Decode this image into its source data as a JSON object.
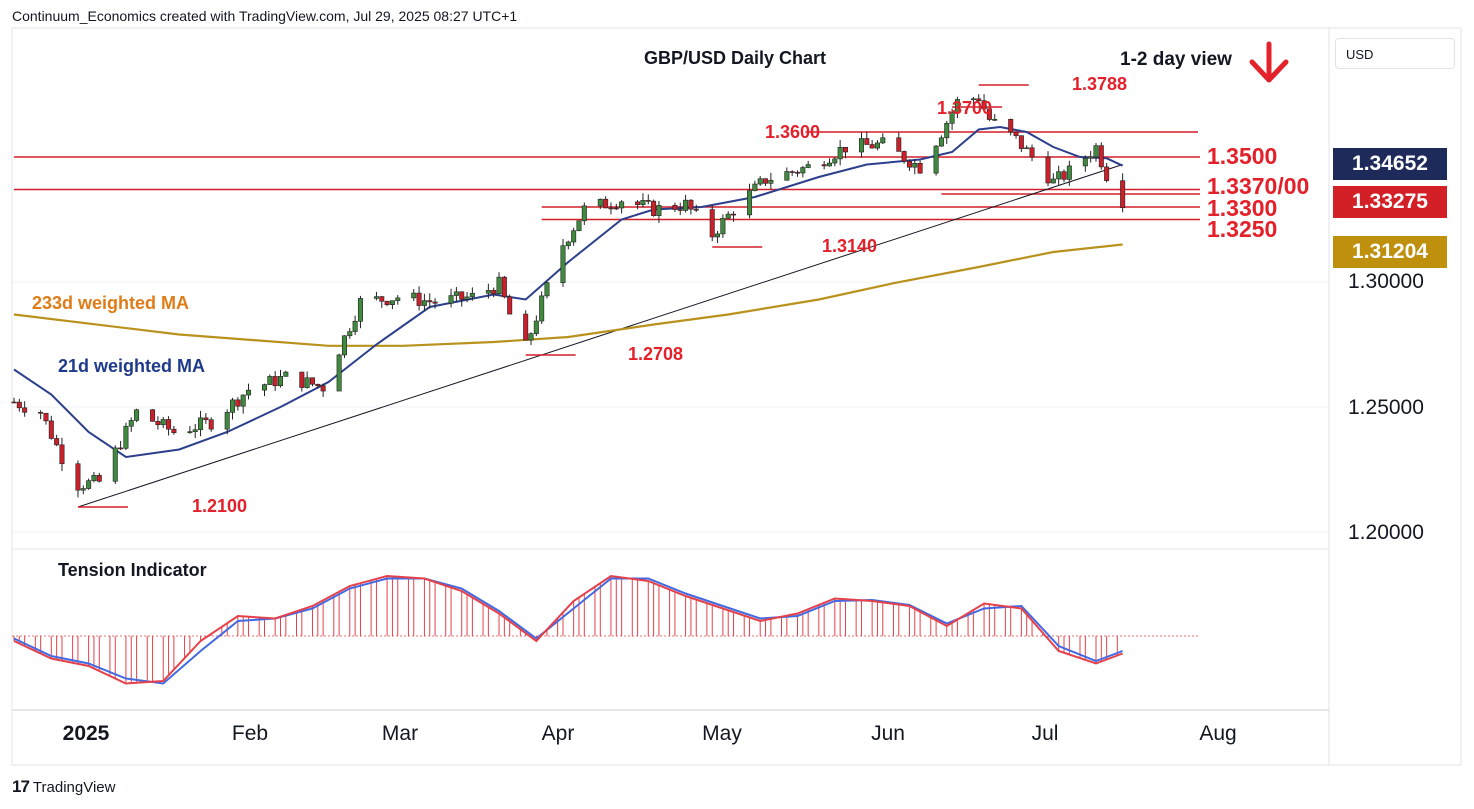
{
  "header": {
    "text": "Continuum_Economics created with TradingView.com, Jul 29, 2025 08:27 UTC+1"
  },
  "footer": {
    "brand": "TradingView"
  },
  "currency_button": "USD",
  "price_tags": [
    {
      "text": "1.34652",
      "color": "#1e2a5a"
    },
    {
      "text": "1.33275",
      "color": "#d32027"
    },
    {
      "text": "1.31204",
      "color": "#bf8f0e"
    }
  ],
  "y_ticks": [
    "1.30000",
    "1.25000",
    "1.20000"
  ],
  "x_ticks": [
    "2025",
    "Feb",
    "Mar",
    "Apr",
    "May",
    "Jun",
    "Jul",
    "Aug"
  ],
  "annotations": {
    "title": "GBP/USD Daily Chart",
    "view": "1-2 day view",
    "ma233": "233d weighted MA",
    "ma21": "21d weighted MA",
    "tension": "Tension Indicator",
    "levels": [
      "1.3500",
      "1.3370/00",
      "1.3300",
      "1.3250"
    ],
    "marks": [
      "1.3788",
      "1.3700",
      "1.3600",
      "1.3140",
      "1.2708",
      "1.2100"
    ]
  },
  "colors": {
    "up_candle": "#3f8a3f",
    "down_candle": "#c9202a",
    "level_line": "#d31f28",
    "ma21": "#2b3f8c",
    "ma233": "#b8921d",
    "arrow": "#e3232b",
    "tension_red": "#e4414a",
    "tension_blue": "#4169e1"
  },
  "chart_data": [
    {
      "type": "line",
      "title": "GBP/USD Daily Chart",
      "subtitle": "1-2 day view",
      "ylim": [
        1.1925,
        1.3975
      ],
      "y_ticks": [
        1.2,
        1.25,
        1.3
      ],
      "x_ticks": [
        "2025",
        "Feb",
        "Mar",
        "Apr",
        "May",
        "Jun",
        "Jul",
        "Aug"
      ],
      "x_range": [
        "2025-01-01",
        "2025-08-13"
      ],
      "horizontal_levels": [
        1.35,
        1.337,
        1.33,
        1.325
      ],
      "marked_levels": [
        {
          "label": "1.3788",
          "date": "2025-07-01",
          "value": 1.3788
        },
        {
          "label": "1.3700",
          "date": "2025-06-26",
          "value": 1.37
        },
        {
          "label": "1.3600",
          "date": "2025-06-06",
          "value": 1.36
        },
        {
          "label": "1.3140",
          "date": "2025-05-12",
          "value": 1.314
        },
        {
          "label": "1.2708",
          "date": "2025-04-07",
          "value": 1.2708
        },
        {
          "label": "1.2100",
          "date": "2025-01-13",
          "value": 1.21
        }
      ],
      "trendline": [
        {
          "date": "2025-01-13",
          "value": 1.21
        },
        {
          "date": "2025-07-28",
          "value": 1.347
        }
      ],
      "series": [
        {
          "name": "233d weighted MA",
          "dates": [
            "2025-01-01",
            "2025-02-01",
            "2025-03-01",
            "2025-03-15",
            "2025-04-01",
            "2025-04-15",
            "2025-05-01",
            "2025-05-15",
            "2025-06-01",
            "2025-06-15",
            "2025-07-01",
            "2025-07-15",
            "2025-07-28"
          ],
          "values": [
            1.287,
            1.279,
            1.2745,
            1.2745,
            1.276,
            1.278,
            1.283,
            1.287,
            1.293,
            1.2995,
            1.306,
            1.312,
            1.315
          ]
        },
        {
          "name": "21d weighted MA",
          "dates": [
            "2025-01-01",
            "2025-01-08",
            "2025-01-15",
            "2025-01-22",
            "2025-02-01",
            "2025-02-10",
            "2025-02-20",
            "2025-03-01",
            "2025-03-10",
            "2025-03-20",
            "2025-04-01",
            "2025-04-07",
            "2025-04-15",
            "2025-04-25",
            "2025-05-01",
            "2025-05-10",
            "2025-05-20",
            "2025-06-01",
            "2025-06-10",
            "2025-06-20",
            "2025-06-26",
            "2025-07-01",
            "2025-07-05",
            "2025-07-10",
            "2025-07-15",
            "2025-07-20",
            "2025-07-25",
            "2025-07-28"
          ],
          "values": [
            1.265,
            1.255,
            1.24,
            1.23,
            1.233,
            1.24,
            1.25,
            1.26,
            1.275,
            1.29,
            1.295,
            1.293,
            1.308,
            1.325,
            1.329,
            1.33,
            1.334,
            1.342,
            1.347,
            1.349,
            1.352,
            1.361,
            1.362,
            1.36,
            1.354,
            1.35,
            1.3495,
            1.3465
          ]
        },
        {
          "name": "GBP/USD close",
          "dates": [
            "2025-01-01",
            "2025-01-06",
            "2025-01-10",
            "2025-01-13",
            "2025-01-17",
            "2025-01-24",
            "2025-01-31",
            "2025-02-07",
            "2025-02-14",
            "2025-02-21",
            "2025-02-28",
            "2025-03-03",
            "2025-03-07",
            "2025-03-14",
            "2025-03-21",
            "2025-03-28",
            "2025-04-02",
            "2025-04-04",
            "2025-04-07",
            "2025-04-10",
            "2025-04-14",
            "2025-04-18",
            "2025-04-25",
            "2025-05-01",
            "2025-05-07",
            "2025-05-12",
            "2025-05-16",
            "2025-05-22",
            "2025-05-30",
            "2025-06-06",
            "2025-06-13",
            "2025-06-20",
            "2025-06-24",
            "2025-06-27",
            "2025-07-01",
            "2025-07-03",
            "2025-07-08",
            "2025-07-11",
            "2025-07-15",
            "2025-07-18",
            "2025-07-23",
            "2025-07-25",
            "2025-07-28"
          ],
          "values": [
            1.252,
            1.248,
            1.23,
            1.219,
            1.22,
            1.248,
            1.24,
            1.244,
            1.257,
            1.262,
            1.258,
            1.273,
            1.292,
            1.294,
            1.292,
            1.294,
            1.299,
            1.287,
            1.274,
            1.292,
            1.315,
            1.329,
            1.333,
            1.329,
            1.331,
            1.319,
            1.329,
            1.341,
            1.346,
            1.354,
            1.355,
            1.346,
            1.36,
            1.372,
            1.374,
            1.365,
            1.357,
            1.35,
            1.34,
            1.344,
            1.354,
            1.343,
            1.3327
          ]
        }
      ]
    },
    {
      "type": "line",
      "title": "Tension Indicator",
      "ylim": [
        -1.2,
        1.4
      ],
      "zero_line": 0,
      "series": [
        {
          "name": "",
          "dates": [
            "2025-01-01",
            "2025-01-08",
            "2025-01-15",
            "2025-01-22",
            "2025-01-29",
            "2025-02-05",
            "2025-02-12",
            "2025-02-19",
            "2025-02-26",
            "2025-03-05",
            "2025-03-12",
            "2025-03-19",
            "2025-03-26",
            "2025-04-02",
            "2025-04-09",
            "2025-04-16",
            "2025-04-23",
            "2025-04-30",
            "2025-05-07",
            "2025-05-14",
            "2025-05-21",
            "2025-05-28",
            "2025-06-04",
            "2025-06-11",
            "2025-06-18",
            "2025-06-25",
            "2025-07-02",
            "2025-07-09",
            "2025-07-16",
            "2025-07-23",
            "2025-07-28"
          ],
          "values": [
            -0.1,
            -0.45,
            -0.6,
            -0.95,
            -0.9,
            -0.1,
            0.4,
            0.35,
            0.6,
            1.0,
            1.2,
            1.15,
            0.9,
            0.45,
            -0.1,
            0.7,
            1.2,
            1.1,
            0.8,
            0.55,
            0.3,
            0.45,
            0.75,
            0.7,
            0.6,
            0.2,
            0.65,
            0.55,
            -0.3,
            -0.55,
            -0.35
          ]
        },
        {
          "name": "",
          "dates": [
            "2025-01-01",
            "2025-01-08",
            "2025-01-15",
            "2025-01-22",
            "2025-01-29",
            "2025-02-05",
            "2025-02-12",
            "2025-02-19",
            "2025-02-26",
            "2025-03-05",
            "2025-03-12",
            "2025-03-19",
            "2025-03-26",
            "2025-04-02",
            "2025-04-09",
            "2025-04-16",
            "2025-04-23",
            "2025-04-30",
            "2025-05-07",
            "2025-05-14",
            "2025-05-21",
            "2025-05-28",
            "2025-06-04",
            "2025-06-11",
            "2025-06-18",
            "2025-06-25",
            "2025-07-02",
            "2025-07-09",
            "2025-07-16",
            "2025-07-23",
            "2025-07-28"
          ],
          "values": [
            -0.05,
            -0.4,
            -0.55,
            -0.85,
            -0.95,
            -0.3,
            0.3,
            0.35,
            0.55,
            0.95,
            1.15,
            1.15,
            0.95,
            0.5,
            -0.05,
            0.55,
            1.15,
            1.15,
            0.85,
            0.6,
            0.35,
            0.4,
            0.7,
            0.72,
            0.62,
            0.25,
            0.55,
            0.6,
            -0.2,
            -0.5,
            -0.3
          ]
        }
      ]
    }
  ]
}
